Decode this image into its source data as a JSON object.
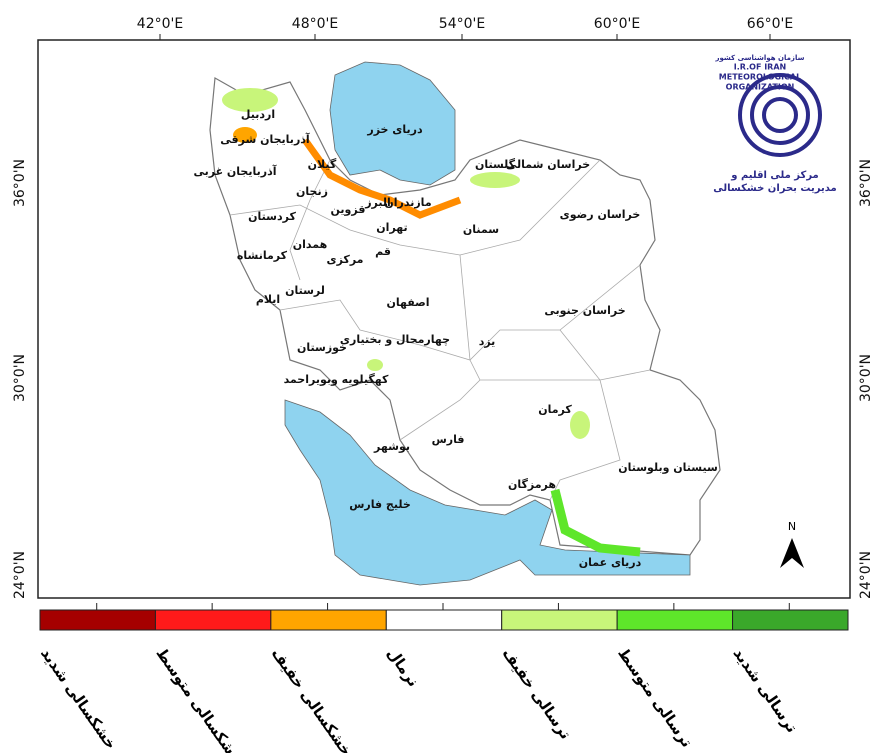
{
  "axes": {
    "top_labels": [
      "42°0'E",
      "48°0'E",
      "54°0'E",
      "60°0'E",
      "66°0'E"
    ],
    "left_labels": [
      "36°0'N",
      "30°0'N",
      "24°0'N"
    ],
    "right_labels": [
      "36°0'N",
      "30°0'N",
      "24°0'N"
    ]
  },
  "water_bodies": [
    "دریای خزر",
    "خلیج فارس",
    "دریای عمان"
  ],
  "provinces": [
    "اردبیل",
    "آذربایجان شرقی",
    "آذربایجان غربی",
    "گیلان",
    "زنجان",
    "کردستان",
    "مازندران",
    "البرز",
    "قزوین",
    "تهران",
    "قم",
    "همدان",
    "کرمانشاه",
    "مرکزی",
    "لرستان",
    "ایلام",
    "اصفهان",
    "چهارمحال و بختیاری",
    "خوزستان",
    "کهگیلویه وبویراحمد",
    "بوشهر",
    "فارس",
    "یزد",
    "کرمان",
    "هرمزگان",
    "سیستان وبلوستان",
    "خراسان جنوبی",
    "خراسان رضوی",
    "خراسان شمالی",
    "گلستان",
    "سمنان"
  ],
  "logo": {
    "lines": [
      "سازمان هواشناسی کشور",
      "I.R.OF IRAN",
      "METEOROLOGICAL",
      "ORGANIZATION",
      "مرکز ملی اقلیم و",
      "مدیریت بحران خشکسالی"
    ]
  },
  "north": "N",
  "legend": [
    {
      "label": "خشکسالی شدید",
      "color": "#a50000"
    },
    {
      "label": "خشکسالی متوسط",
      "color": "#ff1a1a"
    },
    {
      "label": "خشکسالی خفیف",
      "color": "#ffa500"
    },
    {
      "label": "نرمال",
      "color": "#ffffff"
    },
    {
      "label": "ترسالی خفیف",
      "color": "#c8f57a"
    },
    {
      "label": "ترسالی متوسط",
      "color": "#5ee62a"
    },
    {
      "label": "ترسالی شدید",
      "color": "#3aa82a"
    }
  ]
}
